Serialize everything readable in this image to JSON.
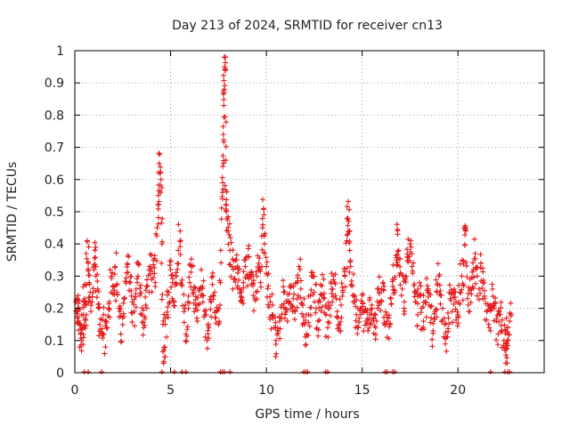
{
  "chart_data": {
    "type": "scatter",
    "title": "Day 213 of 2024, SRMTID for receiver cn13",
    "xlabel": "GPS time / hours",
    "ylabel": "SRMTID / TECUs",
    "xlim": [
      0,
      24.5
    ],
    "ylim": [
      0,
      1
    ],
    "x_ticks": [
      "0",
      "5",
      "10",
      "15",
      "20"
    ],
    "y_ticks": [
      "0",
      "0.1",
      "0.2",
      "0.3",
      "0.4",
      "0.5",
      "0.6",
      "0.7",
      "0.8",
      "0.9",
      "1"
    ],
    "grid": true,
    "marker": "plus",
    "color": "#e41a1c",
    "series": [
      {
        "name": "SRMTID",
        "points": [
          [
            0.05,
            0.22
          ],
          [
            0.1,
            0.19
          ],
          [
            0.15,
            0.17
          ],
          [
            0.2,
            0.2
          ],
          [
            0.25,
            0.15
          ],
          [
            0.3,
            0.12
          ],
          [
            0.35,
            0.1
          ],
          [
            0.4,
            0.14
          ],
          [
            0.45,
            0.18
          ],
          [
            0.5,
            0.23
          ],
          [
            0.55,
            0.21
          ],
          [
            0.6,
            0.18
          ],
          [
            0.65,
            0.41
          ],
          [
            0.7,
            0.34
          ],
          [
            0.75,
            0.28
          ],
          [
            0.8,
            0.25
          ],
          [
            0.9,
            0.22
          ],
          [
            1.0,
            0.32
          ],
          [
            1.05,
            0.38
          ],
          [
            1.1,
            0.3
          ],
          [
            1.2,
            0.26
          ],
          [
            1.25,
            0.2
          ],
          [
            1.3,
            0.15
          ],
          [
            1.4,
            0.12
          ],
          [
            1.5,
            0.18
          ],
          [
            1.6,
            0.08
          ],
          [
            1.7,
            0.14
          ],
          [
            1.8,
            0.22
          ],
          [
            1.9,
            0.3
          ],
          [
            2.0,
            0.27
          ],
          [
            2.1,
            0.33
          ],
          [
            2.2,
            0.25
          ],
          [
            2.3,
            0.2
          ],
          [
            2.4,
            0.12
          ],
          [
            2.5,
            0.17
          ],
          [
            2.6,
            0.23
          ],
          [
            2.7,
            0.31
          ],
          [
            2.8,
            0.36
          ],
          [
            2.9,
            0.28
          ],
          [
            3.0,
            0.22
          ],
          [
            3.1,
            0.19
          ],
          [
            3.2,
            0.26
          ],
          [
            3.3,
            0.3
          ],
          [
            3.4,
            0.24
          ],
          [
            3.5,
            0.18
          ],
          [
            3.6,
            0.14
          ],
          [
            3.7,
            0.21
          ],
          [
            3.8,
            0.27
          ],
          [
            3.9,
            0.33
          ],
          [
            4.0,
            0.29
          ],
          [
            4.1,
            0.35
          ],
          [
            4.2,
            0.28
          ],
          [
            4.3,
            0.45
          ],
          [
            4.35,
            0.52
          ],
          [
            4.4,
            0.65
          ],
          [
            4.45,
            0.62
          ],
          [
            4.5,
            0.6
          ],
          [
            4.55,
            0.4
          ],
          [
            4.6,
            0.15
          ],
          [
            4.65,
            0.035
          ],
          [
            4.7,
            0.08
          ],
          [
            4.8,
            0.18
          ],
          [
            4.9,
            0.25
          ],
          [
            5.0,
            0.32
          ],
          [
            5.1,
            0.28
          ],
          [
            5.2,
            0.22
          ],
          [
            5.3,
            0.3
          ],
          [
            5.4,
            0.38
          ],
          [
            5.5,
            0.44
          ],
          [
            5.6,
            0.27
          ],
          [
            5.7,
            0.19
          ],
          [
            5.8,
            0.12
          ],
          [
            5.9,
            0.22
          ],
          [
            6.0,
            0.28
          ],
          [
            6.1,
            0.33
          ],
          [
            6.2,
            0.25
          ],
          [
            6.3,
            0.2
          ],
          [
            6.4,
            0.16
          ],
          [
            6.5,
            0.26
          ],
          [
            6.6,
            0.32
          ],
          [
            6.7,
            0.24
          ],
          [
            6.8,
            0.18
          ],
          [
            6.9,
            0.1
          ],
          [
            7.0,
            0.14
          ],
          [
            7.1,
            0.22
          ],
          [
            7.2,
            0.3
          ],
          [
            7.3,
            0.25
          ],
          [
            7.4,
            0.19
          ],
          [
            7.5,
            0.15
          ],
          [
            7.6,
            0.28
          ],
          [
            7.7,
            0.54
          ],
          [
            7.72,
            0.59
          ],
          [
            7.75,
            0.74
          ],
          [
            7.78,
            0.83
          ],
          [
            7.8,
            0.88
          ],
          [
            7.82,
            0.95
          ],
          [
            7.85,
            0.94
          ],
          [
            7.88,
            0.66
          ],
          [
            7.9,
            0.52
          ],
          [
            7.95,
            0.48
          ],
          [
            8.0,
            0.44
          ],
          [
            8.1,
            0.38
          ],
          [
            8.2,
            0.33
          ],
          [
            8.3,
            0.29
          ],
          [
            8.4,
            0.35
          ],
          [
            8.5,
            0.31
          ],
          [
            8.6,
            0.26
          ],
          [
            8.7,
            0.22
          ],
          [
            8.8,
            0.28
          ],
          [
            8.9,
            0.33
          ],
          [
            9.0,
            0.3
          ],
          [
            9.1,
            0.36
          ],
          [
            9.2,
            0.31
          ],
          [
            9.3,
            0.27
          ],
          [
            9.4,
            0.23
          ],
          [
            9.5,
            0.3
          ],
          [
            9.6,
            0.34
          ],
          [
            9.7,
            0.28
          ],
          [
            9.8,
            0.45
          ],
          [
            9.85,
            0.51
          ],
          [
            9.9,
            0.4
          ],
          [
            10.0,
            0.33
          ],
          [
            10.1,
            0.27
          ],
          [
            10.2,
            0.22
          ],
          [
            10.3,
            0.18
          ],
          [
            10.4,
            0.14
          ],
          [
            10.5,
            0.1
          ],
          [
            10.6,
            0.13
          ],
          [
            10.7,
            0.17
          ],
          [
            10.8,
            0.21
          ],
          [
            10.9,
            0.25
          ],
          [
            11.0,
            0.2
          ],
          [
            11.1,
            0.16
          ],
          [
            11.2,
            0.22
          ],
          [
            11.3,
            0.27
          ],
          [
            11.4,
            0.23
          ],
          [
            11.5,
            0.19
          ],
          [
            11.6,
            0.28
          ],
          [
            11.7,
            0.33
          ],
          [
            11.8,
            0.26
          ],
          [
            11.9,
            0.21
          ],
          [
            12.0,
            0.15
          ],
          [
            12.1,
            0.12
          ],
          [
            12.2,
            0.18
          ],
          [
            12.3,
            0.24
          ],
          [
            12.4,
            0.3
          ],
          [
            12.5,
            0.25
          ],
          [
            12.6,
            0.2
          ],
          [
            12.7,
            0.16
          ],
          [
            12.8,
            0.22
          ],
          [
            12.9,
            0.27
          ],
          [
            13.0,
            0.23
          ],
          [
            13.1,
            0.18
          ],
          [
            13.2,
            0.14
          ],
          [
            13.3,
            0.2
          ],
          [
            13.4,
            0.26
          ],
          [
            13.5,
            0.3
          ],
          [
            13.6,
            0.24
          ],
          [
            13.7,
            0.19
          ],
          [
            13.8,
            0.15
          ],
          [
            13.9,
            0.21
          ],
          [
            14.0,
            0.25
          ],
          [
            14.1,
            0.3
          ],
          [
            14.2,
            0.41
          ],
          [
            14.25,
            0.48
          ],
          [
            14.3,
            0.47
          ],
          [
            14.35,
            0.38
          ],
          [
            14.4,
            0.33
          ],
          [
            14.5,
            0.27
          ],
          [
            14.6,
            0.22
          ],
          [
            14.7,
            0.18
          ],
          [
            14.8,
            0.14
          ],
          [
            14.9,
            0.2
          ],
          [
            15.0,
            0.24
          ],
          [
            15.1,
            0.19
          ],
          [
            15.2,
            0.16
          ],
          [
            15.3,
            0.13
          ],
          [
            15.4,
            0.18
          ],
          [
            15.5,
            0.21
          ],
          [
            15.6,
            0.17
          ],
          [
            15.7,
            0.14
          ],
          [
            15.8,
            0.2
          ],
          [
            15.9,
            0.25
          ],
          [
            16.0,
            0.22
          ],
          [
            16.1,
            0.28
          ],
          [
            16.2,
            0.15
          ],
          [
            16.3,
            0.11
          ],
          [
            16.4,
            0.17
          ],
          [
            16.5,
            0.23
          ],
          [
            16.6,
            0.29
          ],
          [
            16.7,
            0.25
          ],
          [
            16.8,
            0.35
          ],
          [
            16.85,
            0.43
          ],
          [
            16.9,
            0.38
          ],
          [
            17.0,
            0.31
          ],
          [
            17.1,
            0.26
          ],
          [
            17.2,
            0.22
          ],
          [
            17.3,
            0.3
          ],
          [
            17.4,
            0.36
          ],
          [
            17.5,
            0.4
          ],
          [
            17.6,
            0.33
          ],
          [
            17.7,
            0.27
          ],
          [
            17.8,
            0.22
          ],
          [
            17.9,
            0.18
          ],
          [
            18.0,
            0.24
          ],
          [
            18.1,
            0.2
          ],
          [
            18.2,
            0.16
          ],
          [
            18.3,
            0.22
          ],
          [
            18.4,
            0.27
          ],
          [
            18.5,
            0.21
          ],
          [
            18.6,
            0.17
          ],
          [
            18.7,
            0.13
          ],
          [
            18.8,
            0.19
          ],
          [
            18.9,
            0.25
          ],
          [
            19.0,
            0.3
          ],
          [
            19.1,
            0.24
          ],
          [
            19.2,
            0.2
          ],
          [
            19.3,
            0.15
          ],
          [
            19.4,
            0.11
          ],
          [
            19.5,
            0.17
          ],
          [
            19.6,
            0.23
          ],
          [
            19.7,
            0.19
          ],
          [
            19.8,
            0.26
          ],
          [
            19.9,
            0.22
          ],
          [
            20.0,
            0.18
          ],
          [
            20.1,
            0.25
          ],
          [
            20.2,
            0.3
          ],
          [
            20.3,
            0.27
          ],
          [
            20.35,
            0.45
          ],
          [
            20.4,
            0.44
          ],
          [
            20.5,
            0.23
          ],
          [
            20.6,
            0.19
          ],
          [
            20.7,
            0.26
          ],
          [
            20.8,
            0.32
          ],
          [
            20.9,
            0.37
          ],
          [
            21.0,
            0.3
          ],
          [
            21.1,
            0.26
          ],
          [
            21.2,
            0.34
          ],
          [
            21.3,
            0.28
          ],
          [
            21.4,
            0.23
          ],
          [
            21.5,
            0.19
          ],
          [
            21.6,
            0.15
          ],
          [
            21.7,
            0.21
          ],
          [
            21.8,
            0.26
          ],
          [
            21.9,
            0.2
          ],
          [
            22.0,
            0.16
          ],
          [
            22.1,
            0.12
          ],
          [
            22.2,
            0.18
          ],
          [
            22.3,
            0.13
          ],
          [
            22.4,
            0.1
          ],
          [
            22.45,
            0.07
          ],
          [
            22.5,
            0.055
          ],
          [
            22.55,
            0.09
          ],
          [
            22.6,
            0.14
          ],
          [
            22.7,
            0.16
          ]
        ],
        "zero_points": [
          0.5,
          0.7,
          1.4,
          4.55,
          5.2,
          5.6,
          5.8,
          7.6,
          7.7,
          7.8,
          8.1,
          11.95,
          12.05,
          12.15,
          13.1,
          13.2,
          16.2,
          16.3,
          16.6,
          16.7,
          21.7,
          22.45,
          22.6,
          22.7
        ]
      }
    ]
  }
}
